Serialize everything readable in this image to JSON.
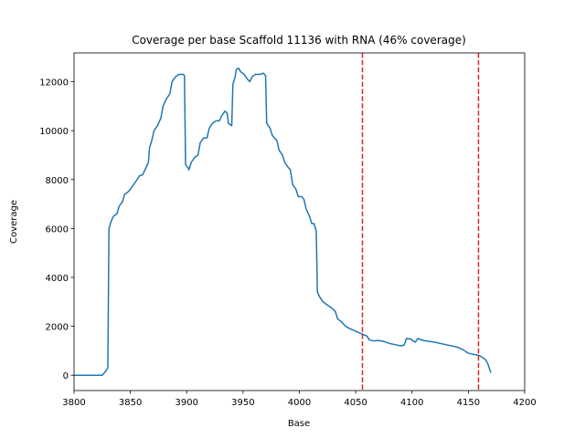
{
  "chart_data": {
    "type": "line",
    "title": "Coverage per base Scaffold 11136 with RNA (46% coverage)",
    "x_label": "Base",
    "y_label": "Coverage",
    "x": [
      3800,
      3825,
      3828,
      3830,
      3831,
      3833,
      3835,
      3838,
      3840,
      3843,
      3845,
      3848,
      3850,
      3853,
      3856,
      3858,
      3861,
      3863,
      3866,
      3867,
      3869,
      3871,
      3874,
      3877,
      3879,
      3882,
      3885,
      3887,
      3890,
      3893,
      3897,
      3898,
      3899,
      3901,
      3902,
      3904,
      3907,
      3910,
      3912,
      3915,
      3918,
      3920,
      3923,
      3926,
      3929,
      3931,
      3934,
      3936,
      3937,
      3940,
      3941,
      3943,
      3944,
      3946,
      3948,
      3951,
      3954,
      3956,
      3958,
      3961,
      3965,
      3968,
      3970,
      3971,
      3974,
      3976,
      3978,
      3980,
      3982,
      3985,
      3987,
      3990,
      3992,
      3994,
      3997,
      3999,
      4002,
      4004,
      4006,
      4009,
      4011,
      4013,
      4015,
      4016,
      4018,
      4021,
      4024,
      4027,
      4030,
      4032,
      4034,
      4037,
      4039,
      4041,
      4045,
      4050,
      4055,
      4060,
      4062,
      4066,
      4070,
      4075,
      4080,
      4085,
      4090,
      4093,
      4095,
      4099,
      4101,
      4103,
      4105,
      4110,
      4120,
      4130,
      4140,
      4145,
      4150,
      4155,
      4160,
      4165,
      4167,
      4170
    ],
    "values": [
      0,
      0,
      150,
      300,
      6000,
      6300,
      6500,
      6600,
      6900,
      7100,
      7400,
      7500,
      7600,
      7800,
      8000,
      8150,
      8200,
      8400,
      8700,
      9300,
      9600,
      10000,
      10200,
      10500,
      11000,
      11300,
      11500,
      12000,
      12200,
      12300,
      12300,
      12250,
      8600,
      8500,
      8400,
      8700,
      8900,
      9000,
      9500,
      9700,
      9700,
      10100,
      10300,
      10400,
      10400,
      10600,
      10800,
      10700,
      10300,
      10200,
      11900,
      12200,
      12500,
      12550,
      12400,
      12300,
      12100,
      12000,
      12200,
      12300,
      12300,
      12350,
      12250,
      10300,
      10100,
      9800,
      9700,
      9600,
      9200,
      9000,
      8700,
      8500,
      8400,
      7800,
      7600,
      7300,
      7300,
      7200,
      6800,
      6500,
      6200,
      6200,
      5900,
      3400,
      3200,
      3000,
      2900,
      2800,
      2700,
      2600,
      2300,
      2200,
      2100,
      2000,
      1900,
      1800,
      1700,
      1600,
      1450,
      1400,
      1420,
      1380,
      1300,
      1250,
      1200,
      1230,
      1500,
      1480,
      1400,
      1350,
      1500,
      1420,
      1350,
      1250,
      1150,
      1050,
      900,
      850,
      800,
      650,
      500,
      100
    ],
    "color": "#1f77b4",
    "vlines": [
      {
        "x": 4056,
        "color": "#d62728"
      },
      {
        "x": 4159,
        "color": "#d62728"
      }
    ],
    "vline_style": "dashed",
    "xlim": [
      3800,
      4200
    ],
    "xticks": [
      3800,
      3850,
      3900,
      3950,
      4000,
      4050,
      4100,
      4150,
      4200
    ],
    "ylim": [
      -627,
      13177
    ],
    "yticks": [
      0,
      2000,
      4000,
      6000,
      8000,
      10000,
      12000
    ]
  }
}
